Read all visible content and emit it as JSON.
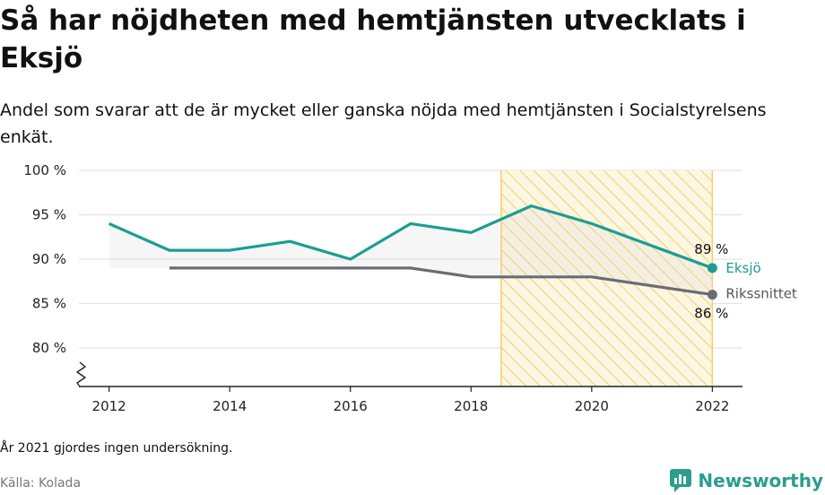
{
  "header": {
    "title": "Så har nöjdheten med hemtjänsten utvecklats i Eksjö",
    "subtitle": "Andel som svarar att de är mycket eller ganska nöjda med hemtjänsten i Socialstyrelsens enkät."
  },
  "footer": {
    "note": "År 2021 gjordes ingen undersökning.",
    "source": "Källa: Kolada",
    "brand": "Newsworthy"
  },
  "colors": {
    "eksjo": "#1a9e93",
    "riks": "#6b6b73",
    "highlight_stroke": "#f3cf6a",
    "brand": "#2a9d8f"
  },
  "chart_data": {
    "type": "line",
    "x": [
      2012,
      2013,
      2014,
      2015,
      2016,
      2017,
      2018,
      2019,
      2020,
      2021,
      2022
    ],
    "xticks": [
      "2012",
      "2014",
      "2016",
      "2018",
      "2020",
      "2022"
    ],
    "yticks": [
      "80 %",
      "85 %",
      "90 %",
      "95 %",
      "100 %"
    ],
    "ylim": [
      80,
      100
    ],
    "axis_break": true,
    "highlighted_range": [
      2018.5,
      2022
    ],
    "series": [
      {
        "name": "Eksjö",
        "values": [
          94,
          91,
          91,
          92,
          90,
          94,
          93,
          96,
          94,
          null,
          89
        ],
        "end_label": "89 %"
      },
      {
        "name": "Rikssnittet",
        "values": [
          null,
          89,
          89,
          89,
          89,
          89,
          88,
          88,
          88,
          null,
          86
        ],
        "end_label": "86 %"
      }
    ]
  }
}
